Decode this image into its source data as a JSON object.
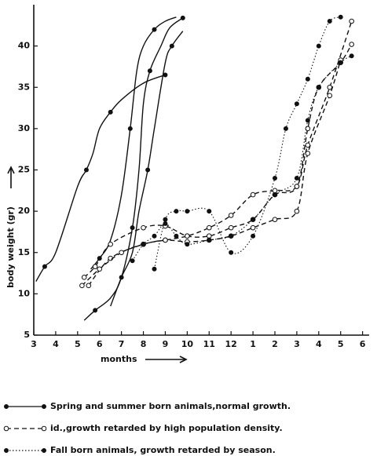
{
  "chart_data": {
    "type": "line",
    "y_label": "body weight (gr)",
    "x_label": "months",
    "xlim": [
      3,
      18.3
    ],
    "ylim": [
      5,
      45
    ],
    "xticks": [
      3,
      4,
      5,
      6,
      7,
      8,
      9,
      10,
      11,
      12,
      {
        "value": 13,
        "label": "1"
      },
      {
        "value": 14,
        "label": "2"
      },
      {
        "value": 15,
        "label": "3"
      },
      {
        "value": 16,
        "label": "4"
      },
      {
        "value": 17,
        "label": "5"
      },
      {
        "value": 18,
        "label": "6"
      }
    ],
    "yticks": [
      5,
      10,
      15,
      20,
      25,
      30,
      35,
      40
    ],
    "color": "#111111",
    "legend": [
      {
        "label": "Spring and summer born animals,normal growth.",
        "style": "solid"
      },
      {
        "label": "id.,growth retarded by high population density.",
        "style": "dashed"
      },
      {
        "label": "Fall born animals, growth retarded by season.",
        "style": "dotted"
      }
    ],
    "series": [
      {
        "style": "solid",
        "x": [
          3.1,
          3.5,
          4,
          5,
          5.4,
          5.7,
          6,
          6.5,
          7,
          8,
          9
        ],
        "values": [
          11.5,
          13.3,
          15,
          23,
          25,
          27,
          30,
          32,
          33.5,
          35.5,
          36.5
        ]
      },
      {
        "style": "solid",
        "x": [
          5.6,
          6,
          6.5,
          7,
          7.4,
          7.7,
          8,
          8.5,
          9,
          9.5
        ],
        "values": [
          13,
          14.3,
          16.5,
          22,
          30,
          37,
          40,
          42,
          43,
          43.5
        ]
      },
      {
        "style": "solid",
        "x": [
          5.3,
          5.8,
          6.5,
          7,
          7.5,
          7.8,
          8,
          8.3,
          8.8,
          9.2,
          9.8
        ],
        "values": [
          6.8,
          8,
          9.5,
          12,
          18,
          25,
          33,
          37,
          40,
          42.2,
          43.4
        ]
      },
      {
        "style": "solid",
        "x": [
          6.5,
          7,
          7.5,
          7.8,
          8.2,
          8.5,
          9,
          9.3,
          9.8
        ],
        "values": [
          8.5,
          12,
          15,
          20,
          25,
          30,
          38,
          40,
          41.8
        ]
      },
      {
        "style": "dashed",
        "x": [
          5.3,
          5.8,
          6.5,
          8,
          9,
          10,
          11,
          12,
          13,
          14,
          15,
          15.5,
          16,
          17,
          17.5
        ],
        "values": [
          12,
          13.3,
          16,
          18,
          18.2,
          17,
          17,
          18,
          19,
          22,
          23,
          30,
          35,
          38,
          40.2
        ]
      },
      {
        "style": "dashed",
        "x": [
          5.5,
          6.5,
          8,
          9,
          10,
          11,
          12,
          13,
          14,
          15,
          15.5,
          16.5,
          17.5
        ],
        "values": [
          11,
          14.3,
          16,
          16.5,
          17,
          18,
          19.5,
          22,
          22.5,
          23,
          28,
          35,
          43
        ]
      },
      {
        "style": "dashed",
        "x": [
          5.2,
          6,
          7,
          8,
          9,
          10,
          11,
          12,
          13,
          14,
          15,
          15.5,
          16.5,
          17
        ],
        "values": [
          11,
          13,
          15,
          16,
          16.5,
          16.3,
          16.5,
          17,
          18,
          19,
          20,
          27,
          34,
          38.3
        ]
      },
      {
        "style": "dotted",
        "x": [
          8.5,
          9,
          9.5,
          10,
          11,
          12,
          13,
          14,
          14.5,
          15,
          15.5,
          16,
          16.5,
          17
        ],
        "values": [
          13,
          19,
          20,
          20,
          20,
          15,
          17,
          24,
          30,
          33,
          36,
          40,
          43,
          43.5
        ]
      },
      {
        "style": "dotted",
        "x": [
          7.5,
          8,
          8.5,
          9,
          9.5,
          10,
          11,
          12,
          13,
          14,
          15,
          15.5,
          16,
          17,
          17.5
        ],
        "values": [
          14,
          16,
          17,
          18.5,
          17,
          16,
          16.5,
          17,
          19,
          22,
          24,
          31,
          35,
          38,
          38.8
        ]
      }
    ]
  }
}
